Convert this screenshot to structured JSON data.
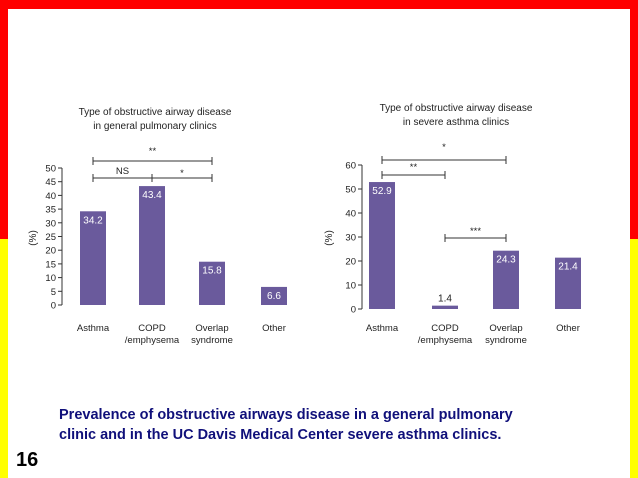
{
  "slide": {
    "caption_line1": "Prevalence of obstructive airways disease in a general pulmonary",
    "caption_line2": "clinic and in the UC Davis Medical Center severe asthma clinics.",
    "number": "16",
    "colors": {
      "top_band": "#ff0000",
      "bottom_band": "#ffff00",
      "bar": "#6a5a9c",
      "caption": "#10107a"
    }
  },
  "chart_data": [
    {
      "type": "bar",
      "title": "Type of obstructive airway disease in general pulmonary clinics",
      "title_lines": [
        "Type of obstructive airway disease",
        "in general pulmonary clinics"
      ],
      "ylabel": "(%)",
      "xlabel": "",
      "categories": [
        "Asthma",
        "COPD /emphysema",
        "Overlap syndrome",
        "Other"
      ],
      "category_lines": [
        [
          "Asthma"
        ],
        [
          "COPD",
          "/emphysema"
        ],
        [
          "Overlap",
          "syndrome"
        ],
        [
          "Other"
        ]
      ],
      "values": [
        34.2,
        43.4,
        15.8,
        6.6
      ],
      "value_labels": [
        "34.2",
        "43.4",
        "15.8",
        "6.6"
      ],
      "ylim": [
        0,
        50
      ],
      "yticks": [
        0,
        5,
        10,
        15,
        20,
        25,
        30,
        35,
        40,
        45,
        50
      ],
      "grid": false,
      "significance": [
        {
          "from": 0,
          "to": 2,
          "label": "**"
        },
        {
          "from": 0,
          "to": 1,
          "label": "NS"
        },
        {
          "from": 1,
          "to": 2,
          "label": "*"
        }
      ]
    },
    {
      "type": "bar",
      "title": "Type of obstructive airway disease in severe asthma clinics",
      "title_lines": [
        "Type of obstructive airway disease",
        "in severe asthma clinics"
      ],
      "ylabel": "(%)",
      "xlabel": "",
      "categories": [
        "Asthma",
        "COPD /emphysema",
        "Overlap syndrome",
        "Other"
      ],
      "category_lines": [
        [
          "Asthma"
        ],
        [
          "COPD",
          "/emphysema"
        ],
        [
          "Overlap",
          "syndrome"
        ],
        [
          "Other"
        ]
      ],
      "values": [
        52.9,
        1.4,
        24.3,
        21.4
      ],
      "value_labels": [
        "52.9",
        "1.4",
        "24.3",
        "21.4"
      ],
      "ylim": [
        0,
        60
      ],
      "yticks": [
        0,
        10,
        20,
        30,
        40,
        50,
        60
      ],
      "grid": false,
      "significance": [
        {
          "from": 0,
          "to": 2,
          "label": "*"
        },
        {
          "from": 0,
          "to": 1,
          "label": "**"
        },
        {
          "from": 1,
          "to": 2,
          "label": "***"
        }
      ]
    }
  ]
}
